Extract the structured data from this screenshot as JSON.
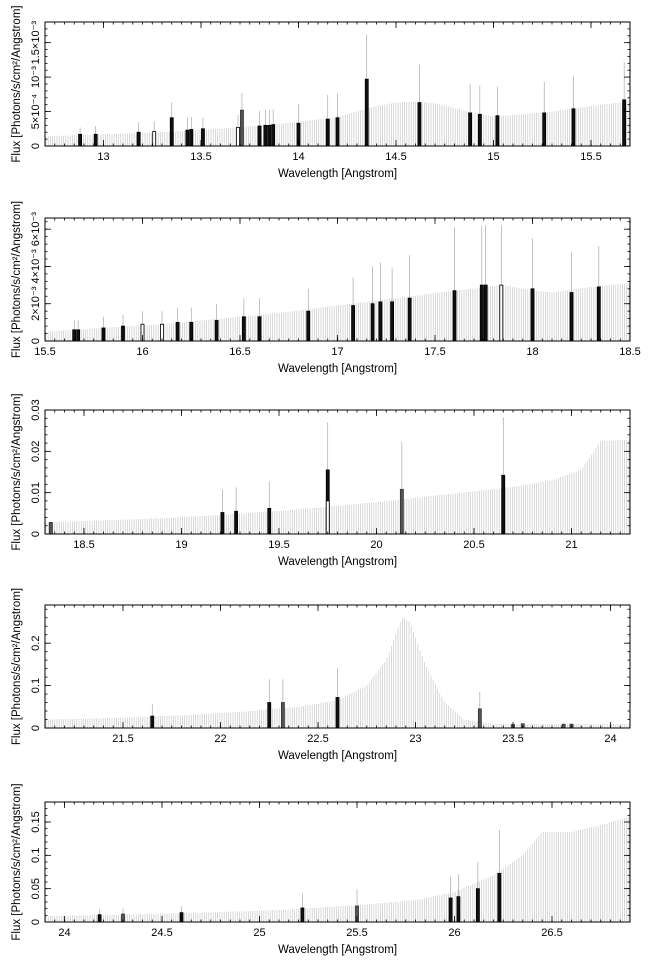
{
  "chart_data": [
    {
      "type": "bar",
      "xlabel": "Wavelength [Angstrom]",
      "ylabel": "Flux [Photons/s/cm²/Angstrom]",
      "xlim": [
        12.7,
        15.7
      ],
      "ylim": [
        0,
        0.0018
      ],
      "xticks": [
        {
          "v": 13,
          "label": "13"
        },
        {
          "v": 13.5,
          "label": "13.5"
        },
        {
          "v": 14,
          "label": "14"
        },
        {
          "v": 14.5,
          "label": "14.5"
        },
        {
          "v": 15,
          "label": "15"
        },
        {
          "v": 15.5,
          "label": "15.5"
        }
      ],
      "yticks": [
        {
          "v": 0,
          "label": "0"
        },
        {
          "v": 0.0005,
          "label": "5×10⁻⁴"
        },
        {
          "v": 0.001,
          "label": "10⁻³"
        },
        {
          "v": 0.0015,
          "label": "1.5×10⁻³"
        }
      ],
      "model": [
        [
          12.7,
          0.00014
        ],
        [
          13.0,
          0.00017
        ],
        [
          13.3,
          0.0002
        ],
        [
          13.6,
          0.00025
        ],
        [
          13.9,
          0.00032
        ],
        [
          14.2,
          0.00042
        ],
        [
          14.4,
          0.00058
        ],
        [
          14.5,
          0.00063
        ],
        [
          14.6,
          0.00064
        ],
        [
          14.7,
          0.00062
        ],
        [
          14.8,
          0.00055
        ],
        [
          14.9,
          0.00048
        ],
        [
          15.0,
          0.00043
        ],
        [
          15.1,
          0.00045
        ],
        [
          15.3,
          0.0005
        ],
        [
          15.5,
          0.00058
        ],
        [
          15.7,
          0.00065
        ]
      ],
      "bins": [
        {
          "x": 12.88,
          "y": 0.00017,
          "err": 0.0001,
          "style": "solid"
        },
        {
          "x": 12.96,
          "y": 0.00017,
          "err": 0.00012,
          "style": "solid"
        },
        {
          "x": 13.18,
          "y": 0.0002,
          "err": 0.00015,
          "style": "solid"
        },
        {
          "x": 13.26,
          "y": 0.00021,
          "err": 0.00015,
          "style": "open"
        },
        {
          "x": 13.35,
          "y": 0.00041,
          "err": 0.00022,
          "style": "solid"
        },
        {
          "x": 13.43,
          "y": 0.00023,
          "err": 0.00018,
          "style": "solid"
        },
        {
          "x": 13.45,
          "y": 0.00024,
          "err": 0.00018,
          "style": "solid"
        },
        {
          "x": 13.51,
          "y": 0.00025,
          "err": 0.00016,
          "style": "solid"
        },
        {
          "x": 13.69,
          "y": 0.00027,
          "err": 0.00018,
          "style": "open"
        },
        {
          "x": 13.71,
          "y": 0.00052,
          "err": 0.00025,
          "style": "gray"
        },
        {
          "x": 13.8,
          "y": 0.00029,
          "err": 0.00022,
          "style": "solid"
        },
        {
          "x": 13.83,
          "y": 0.0003,
          "err": 0.00022,
          "style": "solid"
        },
        {
          "x": 13.85,
          "y": 0.0003,
          "err": 0.00022,
          "style": "solid"
        },
        {
          "x": 13.87,
          "y": 0.00031,
          "err": 0.00022,
          "style": "solid"
        },
        {
          "x": 14.0,
          "y": 0.00033,
          "err": 0.00028,
          "style": "solid"
        },
        {
          "x": 14.15,
          "y": 0.00039,
          "err": 0.00035,
          "style": "solid"
        },
        {
          "x": 14.2,
          "y": 0.00041,
          "err": 0.00035,
          "style": "solid"
        },
        {
          "x": 14.35,
          "y": 0.00097,
          "err": 0.00065,
          "style": "solid"
        },
        {
          "x": 14.62,
          "y": 0.00063,
          "err": 0.00055,
          "style": "solid"
        },
        {
          "x": 14.88,
          "y": 0.00048,
          "err": 0.00042,
          "style": "solid"
        },
        {
          "x": 14.93,
          "y": 0.00046,
          "err": 0.00042,
          "style": "solid"
        },
        {
          "x": 15.02,
          "y": 0.00044,
          "err": 0.00042,
          "style": "solid"
        },
        {
          "x": 15.26,
          "y": 0.00048,
          "err": 0.00045,
          "style": "solid"
        },
        {
          "x": 15.41,
          "y": 0.00054,
          "err": 0.00048,
          "style": "solid"
        },
        {
          "x": 15.67,
          "y": 0.00067,
          "err": 0.00055,
          "style": "solid"
        }
      ]
    },
    {
      "type": "bar",
      "xlabel": "Wavelength [Angstrom]",
      "ylabel": "Flux [Photons/s/cm²/Angstrom]",
      "xlim": [
        15.5,
        18.5
      ],
      "ylim": [
        0,
        0.0066
      ],
      "xticks": [
        {
          "v": 15.5,
          "label": "15.5"
        },
        {
          "v": 16,
          "label": "16"
        },
        {
          "v": 16.5,
          "label": "16.5"
        },
        {
          "v": 17,
          "label": "17"
        },
        {
          "v": 17.5,
          "label": "17.5"
        },
        {
          "v": 18,
          "label": "18"
        },
        {
          "v": 18.5,
          "label": "18.5"
        }
      ],
      "yticks": [
        {
          "v": 0,
          "label": "0"
        },
        {
          "v": 0.002,
          "label": "2×10⁻³"
        },
        {
          "v": 0.004,
          "label": "4×10⁻³"
        },
        {
          "v": 0.006,
          "label": "6×10⁻³"
        }
      ],
      "model": [
        [
          15.5,
          0.0005
        ],
        [
          15.8,
          0.0007
        ],
        [
          16.1,
          0.0009
        ],
        [
          16.4,
          0.0012
        ],
        [
          16.7,
          0.0015
        ],
        [
          17.0,
          0.0019
        ],
        [
          17.3,
          0.0023
        ],
        [
          17.6,
          0.0027
        ],
        [
          17.85,
          0.003
        ],
        [
          17.95,
          0.0028
        ],
        [
          18.1,
          0.0026
        ],
        [
          18.3,
          0.0029
        ],
        [
          18.5,
          0.0031
        ]
      ],
      "bins": [
        {
          "x": 15.65,
          "y": 0.0006,
          "err": 0.0005,
          "style": "solid"
        },
        {
          "x": 15.67,
          "y": 0.0006,
          "err": 0.0005,
          "style": "solid"
        },
        {
          "x": 15.8,
          "y": 0.0007,
          "err": 0.0006,
          "style": "solid"
        },
        {
          "x": 15.9,
          "y": 0.0008,
          "err": 0.0006,
          "style": "solid"
        },
        {
          "x": 16.0,
          "y": 0.0009,
          "err": 0.0007,
          "style": "open"
        },
        {
          "x": 16.1,
          "y": 0.0009,
          "err": 0.0007,
          "style": "open"
        },
        {
          "x": 16.18,
          "y": 0.001,
          "err": 0.0008,
          "style": "solid"
        },
        {
          "x": 16.25,
          "y": 0.001,
          "err": 0.0008,
          "style": "solid"
        },
        {
          "x": 16.38,
          "y": 0.0011,
          "err": 0.0009,
          "style": "solid"
        },
        {
          "x": 16.52,
          "y": 0.0013,
          "err": 0.001,
          "style": "solid"
        },
        {
          "x": 16.6,
          "y": 0.0013,
          "err": 0.001,
          "style": "solid"
        },
        {
          "x": 16.85,
          "y": 0.0016,
          "err": 0.0012,
          "style": "solid"
        },
        {
          "x": 17.08,
          "y": 0.0019,
          "err": 0.0015,
          "style": "solid"
        },
        {
          "x": 17.18,
          "y": 0.002,
          "err": 0.002,
          "style": "solid"
        },
        {
          "x": 17.22,
          "y": 0.0021,
          "err": 0.0021,
          "style": "solid"
        },
        {
          "x": 17.28,
          "y": 0.0021,
          "err": 0.0018,
          "style": "solid"
        },
        {
          "x": 17.37,
          "y": 0.0023,
          "err": 0.0023,
          "style": "solid"
        },
        {
          "x": 17.6,
          "y": 0.0027,
          "err": 0.0034,
          "style": "solid"
        },
        {
          "x": 17.74,
          "y": 0.003,
          "err": 0.0032,
          "style": "solid"
        },
        {
          "x": 17.76,
          "y": 0.003,
          "err": 0.0032,
          "style": "solid"
        },
        {
          "x": 17.84,
          "y": 0.003,
          "err": 0.0032,
          "style": "open"
        },
        {
          "x": 18.0,
          "y": 0.0028,
          "err": 0.0027,
          "style": "solid"
        },
        {
          "x": 18.2,
          "y": 0.0026,
          "err": 0.0022,
          "style": "solid"
        },
        {
          "x": 18.34,
          "y": 0.0029,
          "err": 0.0022,
          "style": "solid"
        }
      ]
    },
    {
      "type": "bar",
      "xlabel": "Wavelength [Angstrom]",
      "ylabel": "Flux [Photons/s/cm²/Angstrom]",
      "xlim": [
        18.3,
        21.3
      ],
      "ylim": [
        0,
        0.03
      ],
      "xticks": [
        {
          "v": 18.5,
          "label": "18.5"
        },
        {
          "v": 19,
          "label": "19"
        },
        {
          "v": 19.5,
          "label": "19.5"
        },
        {
          "v": 20,
          "label": "20"
        },
        {
          "v": 20.5,
          "label": "20.5"
        },
        {
          "v": 21,
          "label": "21"
        }
      ],
      "yticks": [
        {
          "v": 0,
          "label": "0"
        },
        {
          "v": 0.01,
          "label": "0.01"
        },
        {
          "v": 0.02,
          "label": "0.02"
        },
        {
          "v": 0.03,
          "label": "0.03"
        }
      ],
      "model": [
        [
          18.3,
          0.0028
        ],
        [
          18.6,
          0.0033
        ],
        [
          18.9,
          0.0038
        ],
        [
          19.2,
          0.0046
        ],
        [
          19.5,
          0.0056
        ],
        [
          19.8,
          0.0068
        ],
        [
          20.1,
          0.0082
        ],
        [
          20.4,
          0.0098
        ],
        [
          20.7,
          0.0114
        ],
        [
          20.9,
          0.013
        ],
        [
          21.05,
          0.0155
        ],
        [
          21.15,
          0.0225
        ],
        [
          21.3,
          0.0228
        ]
      ],
      "bins": [
        {
          "x": 18.33,
          "y": 0.0028,
          "err": 0.0,
          "style": "gray"
        },
        {
          "x": 19.21,
          "y": 0.0052,
          "err": 0.0055,
          "style": "solid"
        },
        {
          "x": 19.28,
          "y": 0.0055,
          "err": 0.0058,
          "style": "solid"
        },
        {
          "x": 19.45,
          "y": 0.0062,
          "err": 0.0065,
          "style": "solid"
        },
        {
          "x": 19.75,
          "y": 0.0155,
          "err": 0.0115,
          "style": "solid"
        },
        {
          "x": 19.75,
          "y": 0.008,
          "err": 0.0,
          "style": "open"
        },
        {
          "x": 20.13,
          "y": 0.0108,
          "err": 0.0115,
          "style": "gray"
        },
        {
          "x": 20.65,
          "y": 0.0142,
          "err": 0.014,
          "style": "solid"
        }
      ]
    },
    {
      "type": "bar",
      "xlabel": "Wavelength [Angstrom]",
      "ylabel": "Flux [Photons/s/cm²/Angstrom]",
      "xlim": [
        21.1,
        24.1
      ],
      "ylim": [
        0,
        0.29
      ],
      "xticks": [
        {
          "v": 21.5,
          "label": "21.5"
        },
        {
          "v": 22,
          "label": "22"
        },
        {
          "v": 22.5,
          "label": "22.5"
        },
        {
          "v": 23,
          "label": "23"
        },
        {
          "v": 23.5,
          "label": "23.5"
        },
        {
          "v": 24,
          "label": "24"
        }
      ],
      "yticks": [
        {
          "v": 0,
          "label": "0"
        },
        {
          "v": 0.1,
          "label": "0.1"
        },
        {
          "v": 0.2,
          "label": "0.2"
        }
      ],
      "model": [
        [
          21.1,
          0.02
        ],
        [
          21.5,
          0.024
        ],
        [
          21.8,
          0.03
        ],
        [
          22.1,
          0.038
        ],
        [
          22.4,
          0.05
        ],
        [
          22.6,
          0.065
        ],
        [
          22.75,
          0.1
        ],
        [
          22.85,
          0.16
        ],
        [
          22.93,
          0.26
        ],
        [
          22.97,
          0.25
        ],
        [
          23.05,
          0.15
        ],
        [
          23.15,
          0.06
        ],
        [
          23.25,
          0.02
        ],
        [
          23.4,
          0.01
        ],
        [
          23.6,
          0.009
        ],
        [
          24.1,
          0.009
        ]
      ],
      "bins": [
        {
          "x": 21.65,
          "y": 0.028,
          "err": 0.028,
          "style": "solid"
        },
        {
          "x": 22.25,
          "y": 0.06,
          "err": 0.055,
          "style": "solid"
        },
        {
          "x": 22.32,
          "y": 0.06,
          "err": 0.055,
          "style": "gray"
        },
        {
          "x": 22.6,
          "y": 0.072,
          "err": 0.07,
          "style": "solid"
        },
        {
          "x": 23.33,
          "y": 0.045,
          "err": 0.04,
          "style": "gray"
        },
        {
          "x": 23.5,
          "y": 0.008,
          "err": 0.0,
          "style": "gray"
        },
        {
          "x": 23.55,
          "y": 0.01,
          "err": 0.0,
          "style": "gray"
        },
        {
          "x": 23.76,
          "y": 0.009,
          "err": 0.0,
          "style": "gray"
        },
        {
          "x": 23.8,
          "y": 0.009,
          "err": 0.0,
          "style": "gray"
        }
      ]
    },
    {
      "type": "bar",
      "xlabel": "Wavelength [Angstrom]",
      "ylabel": "Flux [Photons/s/cm²/Angstrom]",
      "xlim": [
        23.9,
        26.9
      ],
      "ylim": [
        0,
        0.18
      ],
      "xticks": [
        {
          "v": 24,
          "label": "24"
        },
        {
          "v": 24.5,
          "label": "24.5"
        },
        {
          "v": 25,
          "label": "25"
        },
        {
          "v": 25.5,
          "label": "25.5"
        },
        {
          "v": 26,
          "label": "26"
        },
        {
          "v": 26.5,
          "label": "26.5"
        }
      ],
      "yticks": [
        {
          "v": 0,
          "label": "0"
        },
        {
          "v": 0.05,
          "label": "0.05"
        },
        {
          "v": 0.1,
          "label": "0.1"
        },
        {
          "v": 0.15,
          "label": "0.15"
        }
      ],
      "model": [
        [
          23.9,
          0.009
        ],
        [
          24.3,
          0.011
        ],
        [
          24.7,
          0.014
        ],
        [
          25.1,
          0.018
        ],
        [
          25.5,
          0.025
        ],
        [
          25.8,
          0.033
        ],
        [
          26.0,
          0.045
        ],
        [
          26.2,
          0.07
        ],
        [
          26.35,
          0.1
        ],
        [
          26.45,
          0.135
        ],
        [
          26.6,
          0.135
        ],
        [
          26.75,
          0.145
        ],
        [
          26.9,
          0.158
        ]
      ],
      "bins": [
        {
          "x": 24.18,
          "y": 0.011,
          "err": 0.008,
          "style": "solid"
        },
        {
          "x": 24.3,
          "y": 0.012,
          "err": 0.008,
          "style": "gray"
        },
        {
          "x": 24.6,
          "y": 0.014,
          "err": 0.01,
          "style": "solid"
        },
        {
          "x": 25.22,
          "y": 0.021,
          "err": 0.022,
          "style": "solid"
        },
        {
          "x": 25.5,
          "y": 0.024,
          "err": 0.025,
          "style": "gray"
        },
        {
          "x": 25.98,
          "y": 0.036,
          "err": 0.032,
          "style": "solid"
        },
        {
          "x": 26.02,
          "y": 0.038,
          "err": 0.034,
          "style": "solid"
        },
        {
          "x": 26.12,
          "y": 0.05,
          "err": 0.04,
          "style": "solid"
        },
        {
          "x": 26.23,
          "y": 0.073,
          "err": 0.065,
          "style": "solid"
        }
      ]
    }
  ]
}
